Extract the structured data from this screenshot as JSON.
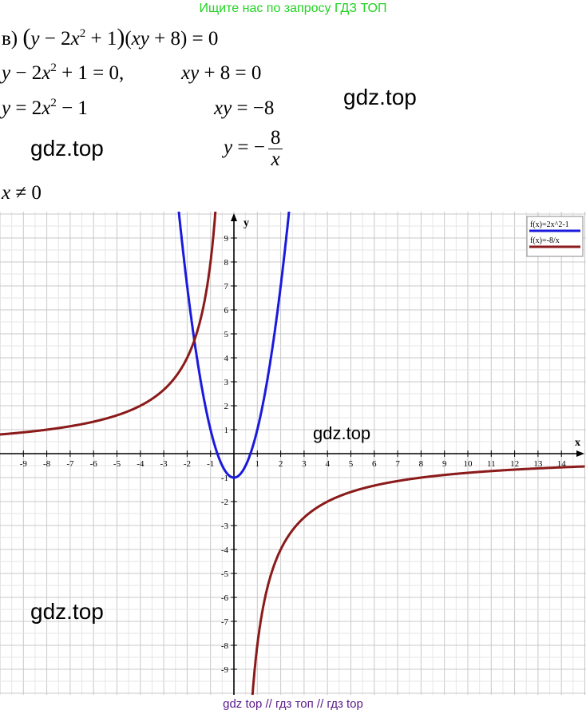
{
  "banner": "Ищите нас по запросу ГДЗ ТОП",
  "eq": {
    "label": "в)",
    "l1_y": "y",
    "l1_m": " − 2",
    "l1_x": "x",
    "l1_exp": "2",
    "l1_p": " + 1",
    "l1_xy": "xy",
    "l1_r": " + 8) = 0",
    "l2a_y": "y",
    "l2a_m": " − 2",
    "l2a_x": "x",
    "l2a_exp": "2",
    "l2a_r": " + 1 = 0,",
    "l2b_xy": "xy",
    "l2b_r": " + 8 = 0",
    "l3a_y": "y",
    "l3a_m": " = 2",
    "l3a_x": "x",
    "l3a_exp": "2",
    "l3a_r": " − 1",
    "l3b_xy": "xy",
    "l3b_r": " = −8",
    "l4_y": "y",
    "l4_eq": " = −",
    "l4_num": "8",
    "l4_den": "x",
    "l5_x": "x",
    "l5_r": " ≠ 0"
  },
  "watermarks": [
    "gdz.top",
    "gdz.top",
    "gdz.top",
    "gdz.top"
  ],
  "footer": "gdz top  //  гдз топ  //  гдз top",
  "chart_data": {
    "type": "line",
    "xlabel": "x",
    "ylabel": "y",
    "xlim": [
      -10,
      15
    ],
    "ylim": [
      -10,
      10
    ],
    "grid": true,
    "x_ticks": [
      -9,
      -8,
      -7,
      -6,
      -5,
      -4,
      -3,
      -2,
      -1,
      1,
      2,
      3,
      4,
      5,
      6,
      7,
      8,
      9,
      10,
      11,
      12,
      13,
      14
    ],
    "y_ticks": [
      -9,
      -8,
      -7,
      -6,
      -5,
      -4,
      -3,
      -2,
      -1,
      1,
      2,
      3,
      4,
      5,
      6,
      7,
      8,
      9
    ],
    "legend_position": "top-right",
    "series": [
      {
        "name": "f(x)=2x^2-1",
        "function": "2x^2-1",
        "color": "#1a1adc"
      },
      {
        "name": "f(x)=-8/x",
        "function": "-8/x",
        "color": "#8b1a1a"
      }
    ]
  }
}
